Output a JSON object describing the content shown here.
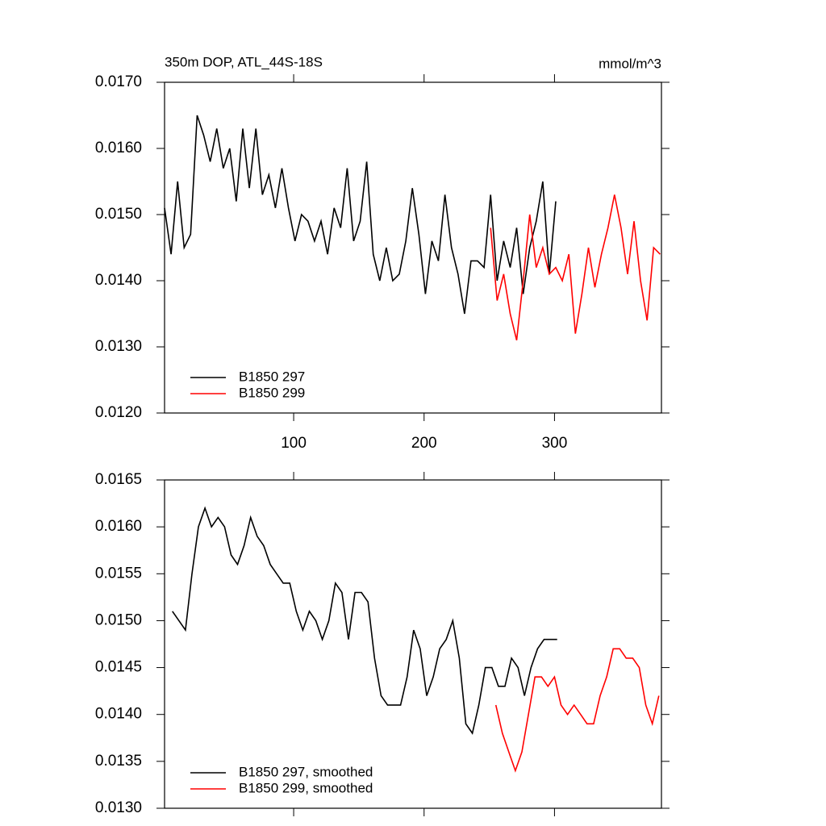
{
  "chart_data": [
    {
      "type": "line",
      "title": "350m DOP, ATL_44S-18S",
      "units": "mmol/m^3",
      "xlim": [
        1,
        382
      ],
      "xticks": [
        100,
        200,
        300
      ],
      "xtick_labels": true,
      "ylim": [
        0.012,
        0.017
      ],
      "yticks": [
        {
          "value": 0.012,
          "label": "0.0120"
        },
        {
          "value": 0.013,
          "label": "0.0130"
        },
        {
          "value": 0.014,
          "label": "0.0140"
        },
        {
          "value": 0.015,
          "label": "0.0150"
        },
        {
          "value": 0.016,
          "label": "0.0160"
        },
        {
          "value": 0.017,
          "label": "0.0170"
        }
      ],
      "legend": "lower left",
      "series": [
        {
          "name": "B1850 297",
          "color": "#000000",
          "x": [
            1,
            6,
            11,
            16,
            21,
            26,
            31,
            36,
            41,
            46,
            51,
            56,
            61,
            66,
            71,
            76,
            81,
            86,
            91,
            96,
            101,
            106,
            111,
            116,
            121,
            126,
            131,
            136,
            141,
            146,
            151,
            156,
            161,
            166,
            171,
            176,
            181,
            186,
            191,
            196,
            201,
            206,
            211,
            216,
            221,
            226,
            231,
            236,
            241,
            246,
            251,
            256,
            261,
            266,
            271,
            276,
            281,
            286,
            291,
            296,
            301
          ],
          "values": [
            0.0151,
            0.0144,
            0.0155,
            0.0145,
            0.0147,
            0.0165,
            0.0162,
            0.0158,
            0.0163,
            0.0157,
            0.016,
            0.0152,
            0.0163,
            0.0154,
            0.0163,
            0.0153,
            0.0156,
            0.0151,
            0.0157,
            0.0151,
            0.0146,
            0.015,
            0.0149,
            0.0146,
            0.0149,
            0.0144,
            0.0151,
            0.0148,
            0.0157,
            0.0146,
            0.0149,
            0.0158,
            0.0144,
            0.014,
            0.0145,
            0.014,
            0.0141,
            0.0146,
            0.0154,
            0.0147,
            0.0138,
            0.0146,
            0.0143,
            0.0153,
            0.0145,
            0.0141,
            0.0135,
            0.0143,
            0.0143,
            0.0142,
            0.0153,
            0.014,
            0.0146,
            0.0142,
            0.0148,
            0.0138,
            0.0145,
            0.0149,
            0.0155,
            0.0141,
            0.0152
          ]
        },
        {
          "name": "B1850 299",
          "color": "#ff0000",
          "x": [
            251,
            256,
            261,
            266,
            271,
            276,
            281,
            286,
            291,
            296,
            301,
            306,
            311,
            316,
            321,
            326,
            331,
            336,
            341,
            346,
            351,
            356,
            361,
            366,
            371,
            376,
            381
          ],
          "values": [
            0.0148,
            0.0137,
            0.0141,
            0.0135,
            0.0131,
            0.014,
            0.015,
            0.0142,
            0.0145,
            0.0141,
            0.0142,
            0.014,
            0.0144,
            0.0132,
            0.0138,
            0.0145,
            0.0139,
            0.0144,
            0.0148,
            0.0153,
            0.0148,
            0.0141,
            0.0149,
            0.014,
            0.0134,
            0.0145,
            0.0144
          ]
        }
      ]
    },
    {
      "type": "line",
      "xlim": [
        1,
        382
      ],
      "xticks": [
        100,
        200,
        300
      ],
      "xtick_labels": false,
      "ylim": [
        0.013,
        0.0165
      ],
      "yticks": [
        {
          "value": 0.013,
          "label": "0.0130"
        },
        0.0135,
        {
          "value": 0.014,
          "label": "0.0140"
        },
        0.0145,
        {
          "value": 0.015,
          "label": "0.0150"
        },
        0.0155,
        {
          "value": 0.016,
          "label": "0.0160"
        },
        0.0165
      ],
      "legend": "lower left",
      "series": [
        {
          "name": "B1850 297, smoothed",
          "color": "#000000",
          "x": [
            7,
            12,
            17,
            22,
            27,
            32,
            37,
            42,
            47,
            52,
            57,
            62,
            67,
            72,
            77,
            82,
            87,
            92,
            97,
            102,
            107,
            112,
            117,
            122,
            127,
            132,
            137,
            142,
            147,
            152,
            157,
            162,
            167,
            172,
            177,
            182,
            187,
            192,
            197,
            202,
            207,
            212,
            217,
            222,
            227,
            232,
            237,
            242,
            247,
            252,
            257,
            262,
            267,
            272,
            277,
            282,
            287,
            292,
            297,
            302
          ],
          "values": [
            0.0151,
            0.015,
            0.0149,
            0.0155,
            0.016,
            0.0162,
            0.016,
            0.0161,
            0.016,
            0.0157,
            0.0156,
            0.0158,
            0.0161,
            0.0159,
            0.0158,
            0.0156,
            0.0155,
            0.0154,
            0.0154,
            0.0151,
            0.0149,
            0.0151,
            0.015,
            0.0148,
            0.015,
            0.0154,
            0.0153,
            0.0148,
            0.0153,
            0.0153,
            0.0152,
            0.0146,
            0.0142,
            0.0141,
            0.0141,
            0.0141,
            0.0144,
            0.0149,
            0.0147,
            0.0142,
            0.0144,
            0.0147,
            0.0148,
            0.015,
            0.0146,
            0.0139,
            0.0138,
            0.0141,
            0.0145,
            0.0145,
            0.0143,
            0.0143,
            0.0146,
            0.0145,
            0.0142,
            0.0145,
            0.0147,
            0.0148,
            0.0148,
            0.0148
          ]
        },
        {
          "name": "B1850 299, smoothed",
          "color": "#ff0000",
          "x": [
            255,
            260,
            265,
            270,
            275,
            280,
            285,
            290,
            295,
            300,
            305,
            310,
            315,
            320,
            325,
            330,
            335,
            340,
            345,
            350,
            355,
            360,
            365,
            370,
            375,
            380
          ],
          "values": [
            0.0141,
            0.0138,
            0.0136,
            0.0134,
            0.0136,
            0.014,
            0.0144,
            0.0144,
            0.0143,
            0.0144,
            0.0141,
            0.014,
            0.0141,
            0.014,
            0.0139,
            0.0139,
            0.0142,
            0.0144,
            0.0147,
            0.0147,
            0.0146,
            0.0146,
            0.0145,
            0.0141,
            0.0139,
            0.0142
          ]
        }
      ]
    }
  ]
}
